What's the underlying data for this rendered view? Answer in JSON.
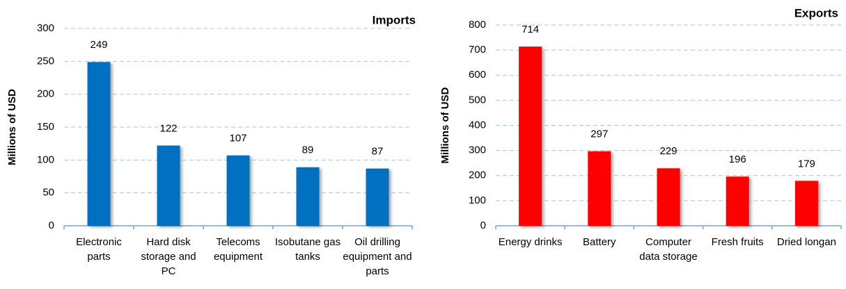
{
  "chart_data": [
    {
      "type": "bar",
      "title": "Imports",
      "y_label": "Millions of USD",
      "categories": [
        "Electronic parts",
        "Hard disk storage and PC",
        "Telecoms equipment",
        "Isobutane gas tanks",
        "Oil drilling equipment and parts"
      ],
      "values": [
        249,
        122,
        107,
        89,
        87
      ],
      "color": "#0070c0",
      "ylim": [
        0,
        300
      ],
      "yticks": [
        0,
        50,
        100,
        150,
        200,
        250,
        300
      ],
      "grid": true
    },
    {
      "type": "bar",
      "title": "Exports",
      "y_label": "Millions of USD",
      "categories": [
        "Energy drinks",
        "Battery",
        "Computer data storage",
        "Fresh fruits",
        "Dried longan"
      ],
      "values": [
        714,
        297,
        229,
        196,
        179
      ],
      "color": "#ff0000",
      "ylim": [
        0,
        800
      ],
      "yticks": [
        0,
        100,
        200,
        300,
        400,
        500,
        600,
        700,
        800
      ],
      "grid": true
    }
  ]
}
